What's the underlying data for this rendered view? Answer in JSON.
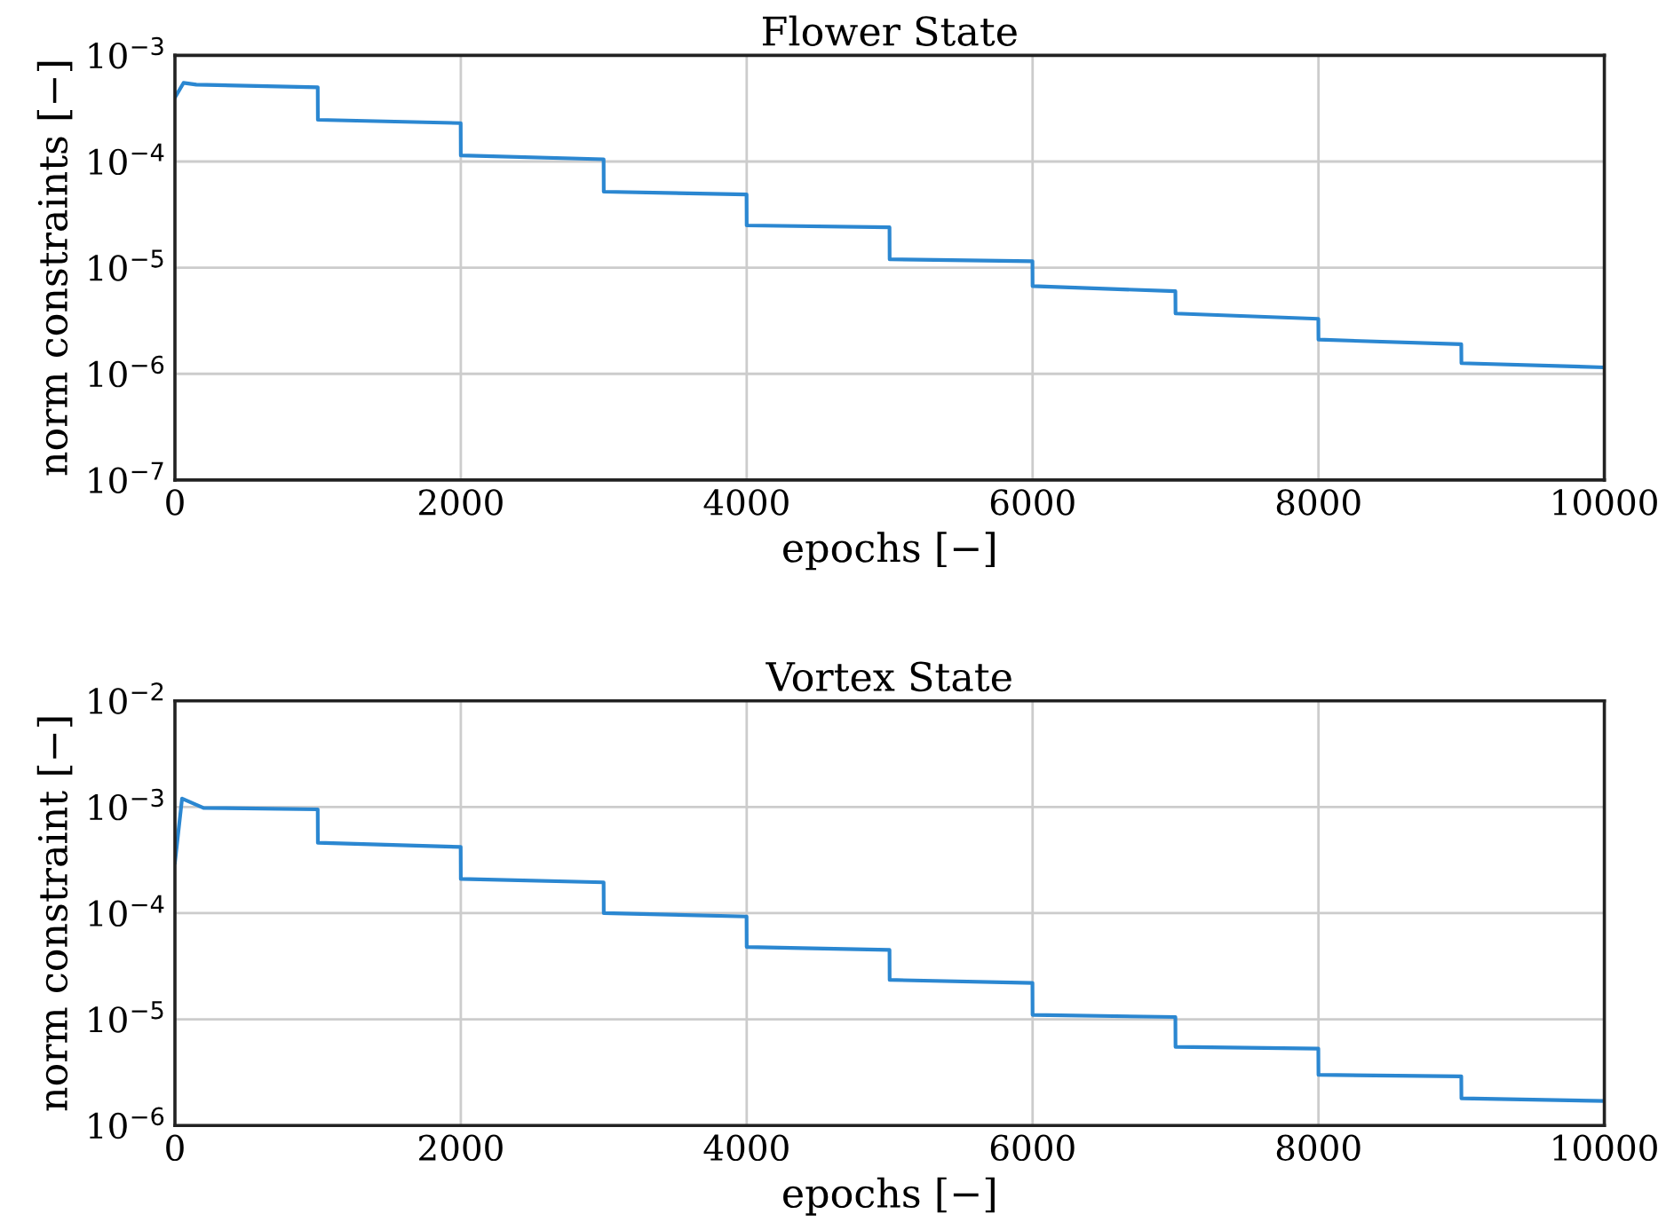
{
  "chart_data": [
    {
      "type": "line",
      "title": "Flower State",
      "xlabel": "epochs [−]",
      "ylabel": "norm constraints [−]",
      "log": "y",
      "grid": true,
      "xlim": [
        0,
        10000
      ],
      "xticks": [
        0,
        2000,
        4000,
        6000,
        8000,
        10000
      ],
      "ylim": [
        1e-07,
        0.001
      ],
      "yticks": [
        {
          "value": 1e-07,
          "label": "10$^{−7}$"
        },
        {
          "value": 1e-06,
          "label": "10$^{−6}$"
        },
        {
          "value": 1e-05,
          "label": "10$^{−5}$"
        },
        {
          "value": 0.0001,
          "label": "10$^{−4}$"
        },
        {
          "value": 0.001,
          "label": "10$^{−3}$"
        }
      ],
      "series": [
        {
          "color": "#2b87d1",
          "x": [
            0,
            60,
            150,
            999,
            1000,
            1999,
            2000,
            2999,
            3000,
            3999,
            4000,
            4999,
            5000,
            5999,
            6000,
            6999,
            7000,
            7999,
            8000,
            8999,
            9000,
            10000
          ],
          "values": [
            0.0004,
            0.00055,
            0.00053,
            0.0005,
            0.000247,
            0.00023,
            0.000114,
            0.000105,
            5.2e-05,
            4.9e-05,
            2.5e-05,
            2.4e-05,
            1.2e-05,
            1.15e-05,
            6.7e-06,
            6e-06,
            3.7e-06,
            3.3e-06,
            2.1e-06,
            1.9e-06,
            1.26e-06,
            1.15e-06
          ]
        }
      ]
    },
    {
      "type": "line",
      "title": "Vortex State",
      "xlabel": "epochs [−]",
      "ylabel": "norm constraint [−]",
      "log": "y",
      "grid": true,
      "xlim": [
        0,
        10000
      ],
      "xticks": [
        0,
        2000,
        4000,
        6000,
        8000,
        10000
      ],
      "ylim": [
        1e-06,
        0.01
      ],
      "yticks": [
        {
          "value": 1e-06,
          "label": "10$^{−6}$"
        },
        {
          "value": 1e-05,
          "label": "10$^{−5}$"
        },
        {
          "value": 0.0001,
          "label": "10$^{−4}$"
        },
        {
          "value": 0.001,
          "label": "10$^{−3}$"
        },
        {
          "value": 0.01,
          "label": "10$^{−2}$"
        }
      ],
      "series": [
        {
          "color": "#2b87d1",
          "x": [
            0,
            50,
            200,
            999,
            1000,
            1999,
            2000,
            2999,
            3000,
            3999,
            4000,
            4999,
            5000,
            5999,
            6000,
            6999,
            7000,
            7999,
            8000,
            8999,
            9000,
            10000
          ],
          "values": [
            0.0003,
            0.0012,
            0.00098,
            0.00095,
            0.00046,
            0.00042,
            0.00021,
            0.000195,
            0.0001,
            9.3e-05,
            4.8e-05,
            4.5e-05,
            2.35e-05,
            2.2e-05,
            1.1e-05,
            1.05e-05,
            5.5e-06,
            5.3e-06,
            3e-06,
            2.9e-06,
            1.8e-06,
            1.7e-06
          ]
        }
      ]
    }
  ]
}
